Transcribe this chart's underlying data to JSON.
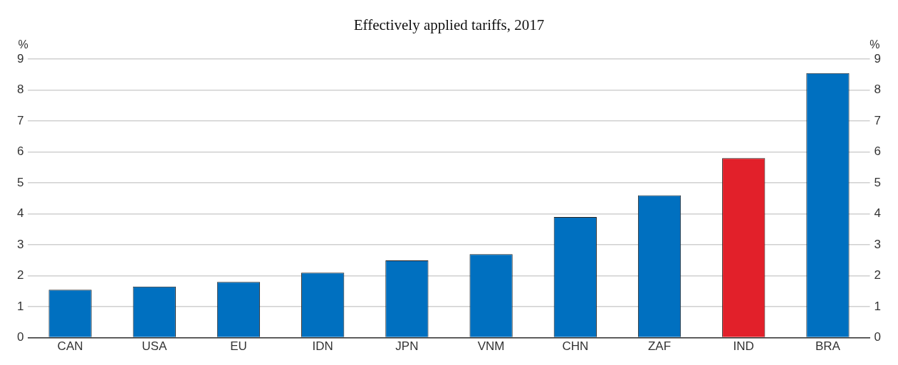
{
  "chart_data": {
    "type": "bar",
    "title": "Effectively applied tariffs, 2017",
    "categories": [
      "CAN",
      "USA",
      "EU",
      "IDN",
      "JPN",
      "VNM",
      "CHN",
      "ZAF",
      "IND",
      "BRA"
    ],
    "values": [
      1.55,
      1.65,
      1.8,
      2.1,
      2.5,
      2.7,
      3.9,
      4.6,
      5.8,
      8.55
    ],
    "colors": [
      "#0070c0",
      "#0070c0",
      "#0070c0",
      "#0070c0",
      "#0070c0",
      "#0070c0",
      "#0070c0",
      "#0070c0",
      "#e2202a",
      "#0070c0"
    ],
    "ylabel": "%",
    "y2label": "%",
    "ylim": [
      0,
      9
    ],
    "yticks": [
      0,
      1,
      2,
      3,
      4,
      5,
      6,
      7,
      8,
      9
    ],
    "y2lim": [
      0,
      9
    ],
    "y2ticks": [
      0,
      1,
      2,
      3,
      4,
      5,
      6,
      7,
      8,
      9
    ],
    "grid": "y",
    "legend": false
  }
}
